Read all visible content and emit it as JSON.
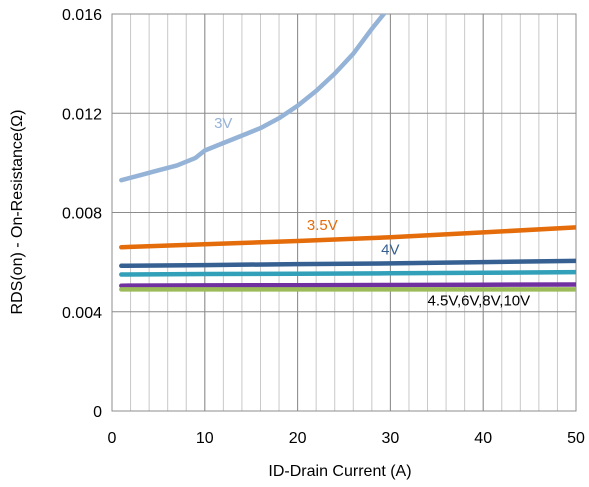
{
  "chart_data": {
    "type": "line",
    "title": "",
    "xlabel": "ID-Drain Current (A)",
    "ylabel": "RDS(on) - On-Resistance(Ω)",
    "xlim": [
      0,
      50
    ],
    "ylim": [
      0,
      0.016
    ],
    "xticks": [
      "0",
      "10",
      "20",
      "30",
      "40",
      "50"
    ],
    "yticks": [
      "0",
      "0.004",
      "0.008",
      "0.012",
      "0.016"
    ],
    "grid": true,
    "series": [
      {
        "name": "3V",
        "color": "#95b3d7",
        "x": [
          1,
          3,
          5,
          7,
          9,
          10,
          12,
          14,
          16,
          18,
          20,
          22,
          24,
          26,
          28,
          29.5
        ],
        "y": [
          0.0093,
          0.0095,
          0.0097,
          0.0099,
          0.0102,
          0.0105,
          0.0108,
          0.0111,
          0.0114,
          0.0118,
          0.0123,
          0.0129,
          0.0136,
          0.0144,
          0.0154,
          0.0161
        ]
      },
      {
        "name": "3.5V",
        "color": "#e46c0a",
        "x": [
          1,
          10,
          20,
          30,
          40,
          50
        ],
        "y": [
          0.0066,
          0.00672,
          0.00685,
          0.007,
          0.0072,
          0.0074
        ]
      },
      {
        "name": "4V",
        "color": "#366092",
        "x": [
          1,
          10,
          20,
          30,
          40,
          50
        ],
        "y": [
          0.00585,
          0.00588,
          0.00592,
          0.00595,
          0.006,
          0.00605
        ]
      },
      {
        "name": "",
        "color": "#31a0b8",
        "x": [
          1,
          10,
          20,
          30,
          40,
          50
        ],
        "y": [
          0.0055,
          0.00552,
          0.00553,
          0.00555,
          0.00557,
          0.0056
        ]
      },
      {
        "name": "",
        "color": "#7030a0",
        "x": [
          1,
          10,
          20,
          30,
          40,
          50
        ],
        "y": [
          0.00505,
          0.00506,
          0.00507,
          0.00508,
          0.00509,
          0.0051
        ]
      },
      {
        "name": "",
        "color": "#9bbb59",
        "x": [
          1,
          10,
          20,
          30,
          40,
          50
        ],
        "y": [
          0.0049,
          0.0049,
          0.0049,
          0.0049,
          0.0049,
          0.0049
        ]
      }
    ],
    "annotations": [
      {
        "text": "3V",
        "x": 11,
        "y": 0.0114,
        "color": "#95b3d7"
      },
      {
        "text": "3.5V",
        "x": 21,
        "y": 0.0073,
        "color": "#e46c0a"
      },
      {
        "text": "4V",
        "x": 29,
        "y": 0.0063,
        "color": "#366092"
      },
      {
        "text": "4.5V,6V,8V,10V",
        "x": 34,
        "y": 0.00425,
        "color": "#000000"
      }
    ]
  }
}
